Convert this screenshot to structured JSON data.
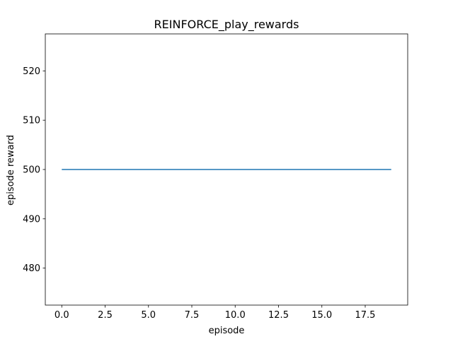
{
  "chart_data": {
    "type": "line",
    "title": "REINFORCE_play_rewards",
    "xlabel": "episode",
    "ylabel": "episode reward",
    "xlim": [
      -0.95,
      19.95
    ],
    "ylim": [
      472.5,
      527.5
    ],
    "xticks": [
      0.0,
      2.5,
      5.0,
      7.5,
      10.0,
      12.5,
      15.0,
      17.5
    ],
    "xtick_labels": [
      "0.0",
      "2.5",
      "5.0",
      "7.5",
      "10.0",
      "12.5",
      "15.0",
      "17.5"
    ],
    "yticks": [
      480,
      490,
      500,
      510,
      520
    ],
    "ytick_labels": [
      "480",
      "490",
      "500",
      "510",
      "520"
    ],
    "grid": false,
    "series": [
      {
        "color": "#1f77b4",
        "x": [
          0,
          1,
          2,
          3,
          4,
          5,
          6,
          7,
          8,
          9,
          10,
          11,
          12,
          13,
          14,
          15,
          16,
          17,
          18,
          19
        ],
        "y": [
          500,
          500,
          500,
          500,
          500,
          500,
          500,
          500,
          500,
          500,
          500,
          500,
          500,
          500,
          500,
          500,
          500,
          500,
          500,
          500
        ]
      }
    ]
  }
}
